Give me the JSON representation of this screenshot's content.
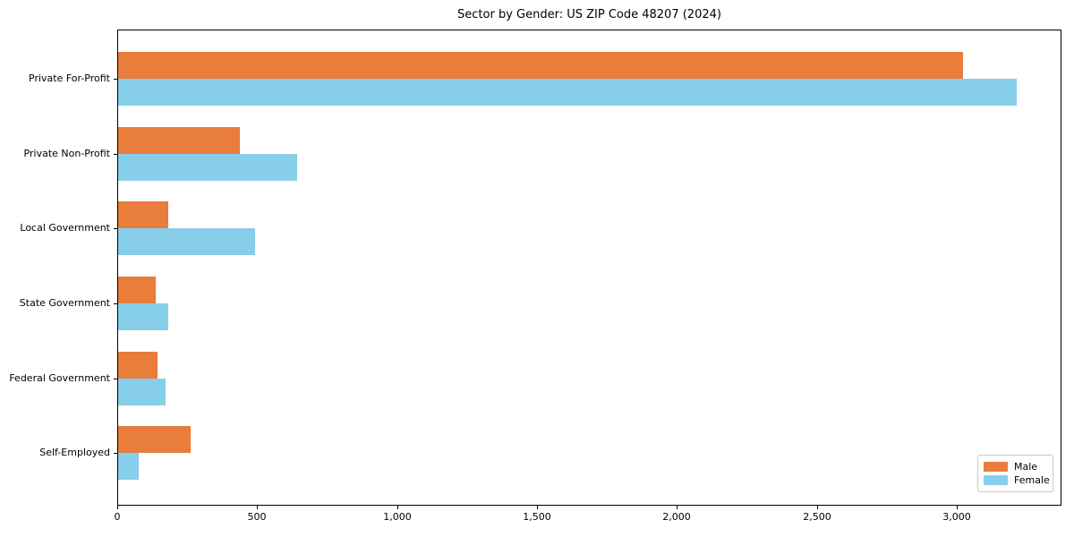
{
  "chart_data": {
    "type": "bar",
    "orientation": "horizontal",
    "title": "Sector by Gender: US ZIP Code 48207 (2024)",
    "xlabel": "",
    "ylabel": "",
    "categories": [
      "Private For-Profit",
      "Private Non-Profit",
      "Local Government",
      "State Government",
      "Federal Government",
      "Self-Employed"
    ],
    "series": [
      {
        "name": "Male",
        "color": "#e87d3c",
        "values": [
          3020,
          435,
          180,
          135,
          140,
          260
        ]
      },
      {
        "name": "Female",
        "color": "#87ceeb",
        "values": [
          3210,
          640,
          490,
          180,
          170,
          75
        ]
      }
    ],
    "xlim": [
      0,
      3368
    ],
    "x_ticks": [
      0,
      500,
      1000,
      1500,
      2000,
      2500,
      3000
    ],
    "x_tick_labels": [
      "0",
      "500",
      "1,000",
      "1,500",
      "2,000",
      "2,500",
      "3,000"
    ],
    "grid": false,
    "legend": {
      "position": "lower right",
      "entries": [
        "Male",
        "Female"
      ]
    }
  }
}
